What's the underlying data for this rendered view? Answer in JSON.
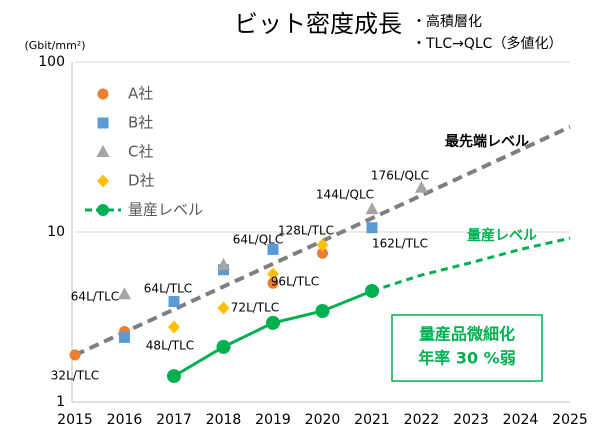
{
  "chart_data": {
    "type": "scatter",
    "title": "ビット密度成長",
    "notes": [
      "・高積層化",
      "・TLC→QLC（多値化）"
    ],
    "y_unit": "(Gbit/mm²)",
    "log_y": true,
    "grid": true,
    "x": [
      2015,
      2016,
      2017,
      2018,
      2019,
      2020,
      2021,
      2022,
      2023,
      2024,
      2025
    ],
    "xlim": [
      2015,
      2025
    ],
    "xticks": [
      2015,
      2016,
      2017,
      2018,
      2019,
      2020,
      2021,
      2022,
      2023,
      2024,
      2025
    ],
    "ylim": [
      1,
      100
    ],
    "yticks": [
      1,
      10,
      100
    ],
    "legend": "upper left",
    "series": [
      {
        "name": "A社",
        "marker": "circle",
        "color": "#ed7d31",
        "values": [
          1.89,
          2.6,
          null,
          null,
          5.0,
          7.5,
          null,
          null,
          null,
          null,
          null
        ]
      },
      {
        "name": "B社",
        "marker": "square",
        "color": "#5b9bd5",
        "values": [
          null,
          2.4,
          3.9,
          6.0,
          7.9,
          null,
          10.6,
          null,
          null,
          null,
          null
        ]
      },
      {
        "name": "C社",
        "marker": "triangle",
        "color": "#a5a5a5",
        "values": [
          null,
          4.3,
          null,
          6.4,
          null,
          null,
          13.6,
          18.2,
          null,
          null,
          null
        ]
      },
      {
        "name": "D社",
        "marker": "diamond",
        "color": "#ffc000",
        "values": [
          null,
          null,
          2.76,
          3.57,
          5.66,
          8.4,
          null,
          null,
          null,
          null,
          null
        ]
      },
      {
        "name": "量産レベル",
        "marker": "line",
        "color": "#00b050",
        "dashed_after": 2021,
        "values": [
          null,
          null,
          1.42,
          2.11,
          2.92,
          3.43,
          4.5,
          5.58,
          6.6,
          7.9,
          9.2
        ]
      }
    ],
    "trend": {
      "label": "最先端レベル",
      "color": "#7f7f7f",
      "x": [
        2015,
        2025
      ],
      "values": [
        1.89,
        41.5
      ]
    },
    "annotations": [
      "32L/TLC",
      "64L/TLC",
      "64L/TLC",
      "48L/TLC",
      "72L/TLC",
      "64L/QLC",
      "96L/TLC",
      "128L/TLC",
      "144L/QLC",
      "176L/QLC",
      "162L/TLC"
    ],
    "callout": [
      "量産品微細化",
      "年率 30 %弱"
    ]
  }
}
